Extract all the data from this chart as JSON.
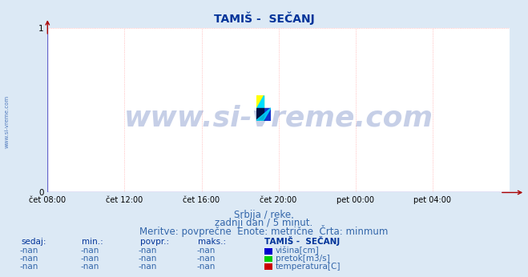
{
  "title": "TAMIŠ -  SEČANJ",
  "title_color": "#003399",
  "title_fontsize": 10,
  "bg_color": "#dce9f5",
  "plot_bg_color": "#ffffff",
  "grid_color": "#ffaaaa",
  "axis_color": "#6666cc",
  "tick_label_color": "#000000",
  "x_ticks_labels": [
    "čet 08:00",
    "čet 12:00",
    "čet 16:00",
    "čet 20:00",
    "pet 00:00",
    "pet 04:00"
  ],
  "x_ticks_pos": [
    0,
    4,
    8,
    12,
    16,
    20
  ],
  "ylim": [
    0,
    1
  ],
  "xlim": [
    0,
    24
  ],
  "watermark_text": "www.si-vreme.com",
  "watermark_color": "#3355aa",
  "watermark_alpha": 0.28,
  "watermark_fontsize": 26,
  "sub_text1": "Srbija / reke.",
  "sub_text2": "zadnji dan / 5 minut.",
  "sub_text3": "Meritve: povprečne  Enote: metrične  Črta: minmum",
  "sub_text_color": "#3366aa",
  "sub_text_fontsize": 8.5,
  "sidewater_text": "www.si-vreme.com",
  "sidewater_color": "#2255aa",
  "table_header": [
    "sedaj:",
    "min.:",
    "povpr.:",
    "maks.:",
    "TAMIŠ -  SEČANJ"
  ],
  "table_rows": [
    [
      "-nan",
      "-nan",
      "-nan",
      "-nan",
      "višina[cm]"
    ],
    [
      "-nan",
      "-nan",
      "-nan",
      "-nan",
      "pretok[m3/s]"
    ],
    [
      "-nan",
      "-nan",
      "-nan",
      "-nan",
      "temperatura[C]"
    ]
  ],
  "legend_colors": [
    "#0000cc",
    "#00cc00",
    "#cc0000"
  ],
  "table_fontsize": 7.5,
  "table_text_color": "#3366aa",
  "table_header_color": "#003399"
}
